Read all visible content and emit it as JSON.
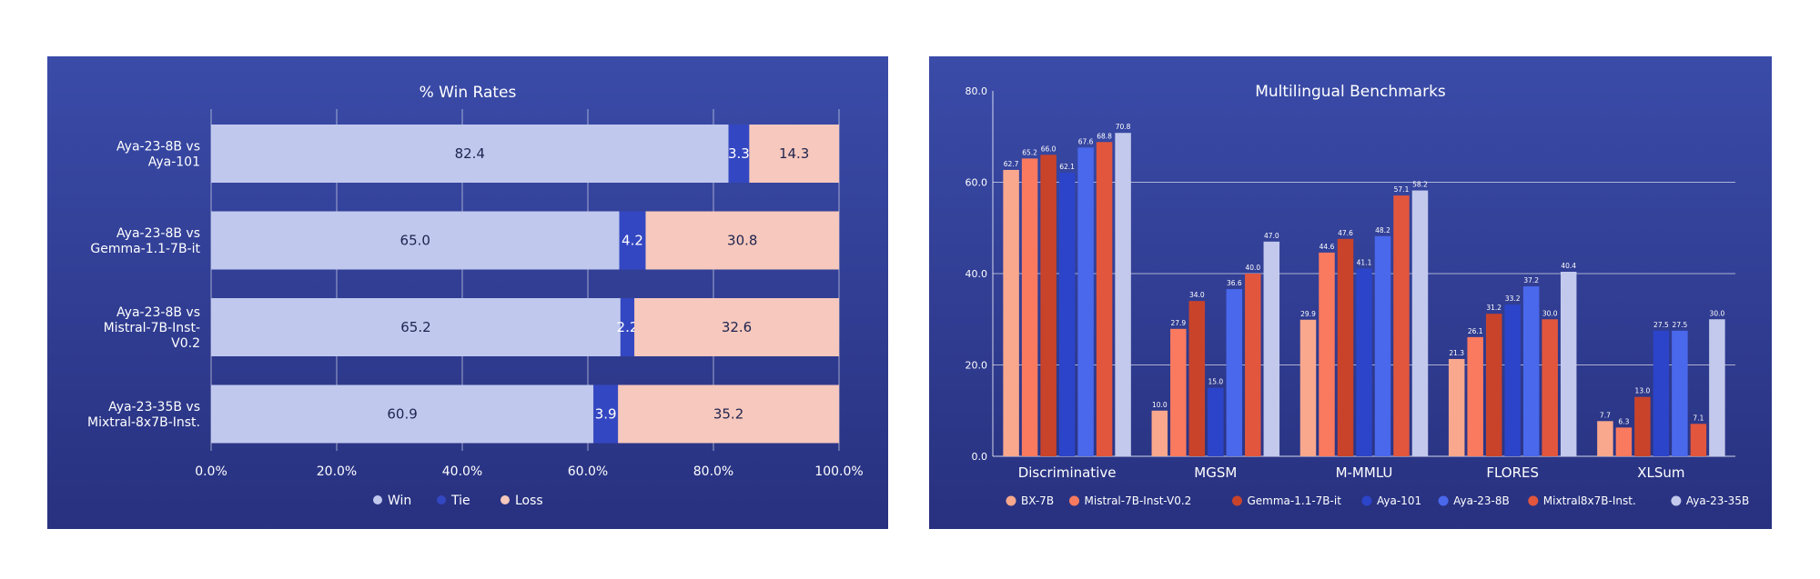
{
  "chart_data": [
    {
      "type": "bar",
      "orientation": "horizontal",
      "stacked": true,
      "title": "% Win Rates",
      "categories": [
        [
          "Aya-23-8B vs",
          "Aya-101"
        ],
        [
          "Aya-23-8B vs",
          "Gemma-1.1-7B-it"
        ],
        [
          "Aya-23-8B vs",
          "Mistral-7B-Inst-",
          "V0.2"
        ],
        [
          "Aya-23-35B vs",
          "Mixtral-8x7B-Inst."
        ]
      ],
      "series": [
        {
          "name": "Win",
          "color": "#c0c8ee",
          "values": [
            82.4,
            65.0,
            65.2,
            60.9
          ],
          "labels": [
            "82.4",
            "65.0",
            "65.2",
            "60.9"
          ]
        },
        {
          "name": "Tie",
          "color": "#3447c2",
          "values": [
            3.3,
            4.2,
            2.2,
            3.9
          ],
          "labels": [
            "3.3",
            "4.2",
            "2.2",
            "3.9"
          ]
        },
        {
          "name": "Loss",
          "color": "#f7c8bd",
          "values": [
            14.3,
            30.8,
            32.6,
            35.2
          ],
          "labels": [
            "14.3",
            "30.8",
            "32.6",
            "35.2"
          ]
        }
      ],
      "xlim": [
        0,
        100
      ],
      "xticks": [
        "0.0%",
        "20.0%",
        "40.0%",
        "60.0%",
        "80.0%",
        "100.0%"
      ],
      "grid": "vertical",
      "legend_position": "bottom"
    },
    {
      "type": "bar",
      "orientation": "vertical",
      "title": "Multilingual Benchmarks",
      "categories": [
        "Discriminative",
        "MGSM",
        "M-MMLU",
        "FLORES",
        "XLSum"
      ],
      "series": [
        {
          "name": "BX-7B",
          "color": "#f9a88d",
          "values": [
            62.7,
            10.0,
            29.9,
            21.3,
            7.7
          ],
          "labels": [
            "62.7",
            "10.0",
            "29.9",
            "21.3",
            "7.7"
          ]
        },
        {
          "name": "Mistral-7B-Inst-V0.2",
          "color": "#f97a5f",
          "values": [
            65.2,
            27.9,
            44.6,
            26.1,
            6.3
          ],
          "labels": [
            "65.2",
            "27.9",
            "44.6",
            "26.1",
            "6.3"
          ]
        },
        {
          "name": "Gemma-1.1-7B-it",
          "color": "#c9432b",
          "values": [
            66.0,
            34.0,
            47.6,
            31.2,
            13.0
          ],
          "labels": [
            "66.0",
            "34.0",
            "47.6",
            "31.2",
            "13.0"
          ]
        },
        {
          "name": "Aya-101",
          "color": "#2c44c9",
          "values": [
            62.1,
            15.0,
            41.1,
            33.2,
            27.5
          ],
          "labels": [
            "62.1",
            "15.0",
            "41.1",
            "33.2",
            "27.5"
          ]
        },
        {
          "name": "Aya-23-8B",
          "color": "#4a68ec",
          "values": [
            67.6,
            36.6,
            48.2,
            37.2,
            27.5
          ],
          "labels": [
            "67.6",
            "36.6",
            "48.2",
            "37.2",
            "27.5"
          ]
        },
        {
          "name": "Mixtral8x7B-Inst.",
          "color": "#e2563d",
          "values": [
            68.8,
            40.0,
            57.1,
            30.0,
            7.1
          ],
          "labels": [
            "68.8",
            "40.0",
            "57.1",
            "30.0",
            "7.1"
          ]
        },
        {
          "name": "Aya-23-35B",
          "color": "#c3c9ec",
          "values": [
            70.8,
            47.0,
            58.2,
            40.4,
            30.0
          ],
          "labels": [
            "70.8",
            "47.0",
            "58.2",
            "40.4",
            "30.0"
          ]
        }
      ],
      "ylim": [
        0,
        80
      ],
      "yticks": [
        "0.0",
        "20.0",
        "40.0",
        "60.0",
        "80.0"
      ],
      "grid": "horizontal",
      "legend_position": "bottom"
    }
  ]
}
